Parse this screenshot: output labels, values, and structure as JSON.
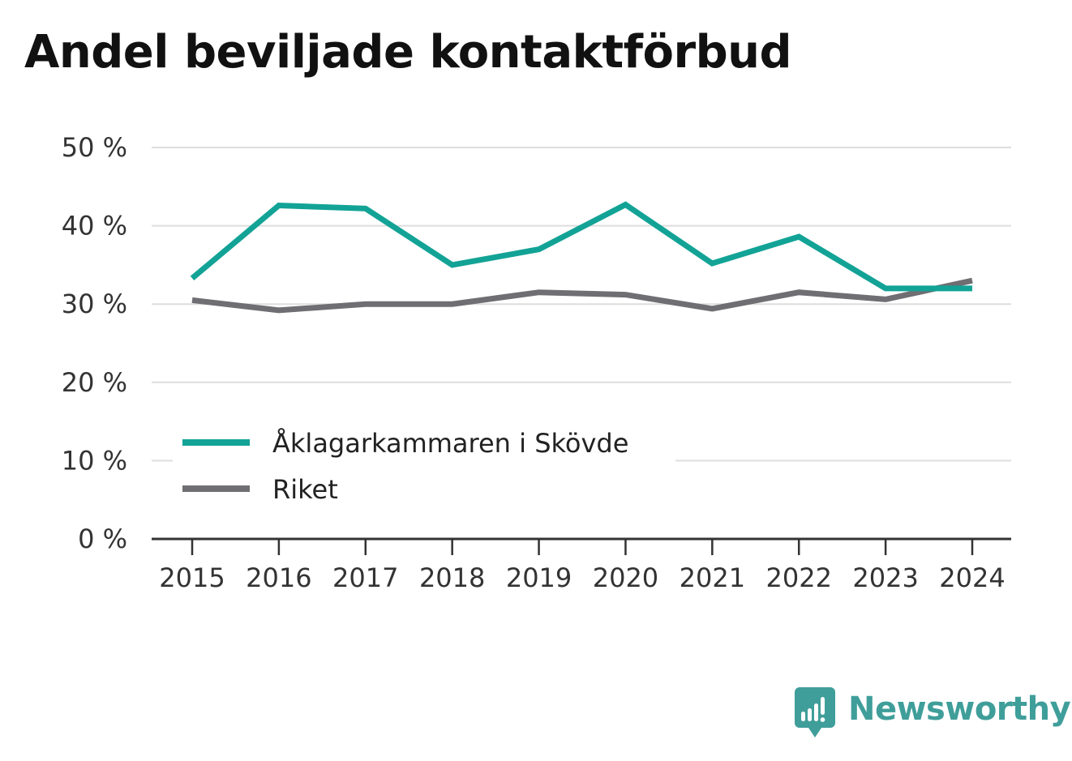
{
  "title": "Andel beviljade kontaktförbud",
  "brand": {
    "name": "Newsworthy",
    "icon": "newsworthy-logo-icon",
    "color": "#3f9e9a"
  },
  "chart_data": {
    "type": "line",
    "title": "Andel beviljade kontaktförbud",
    "xlabel": "",
    "ylabel": "",
    "x": [
      "2015",
      "2016",
      "2017",
      "2018",
      "2019",
      "2020",
      "2021",
      "2022",
      "2023",
      "2024"
    ],
    "y_ticks": [
      "0 %",
      "10 %",
      "20 %",
      "30 %",
      "40 %",
      "50 %"
    ],
    "ylim": [
      0,
      50
    ],
    "grid": true,
    "legend_placement": "lower-left",
    "series": [
      {
        "name": "Åklagarkammaren i Skövde",
        "color": "#12a396",
        "values": [
          33.3,
          42.6,
          42.2,
          35.0,
          37.0,
          42.7,
          35.2,
          38.6,
          32.0,
          32.0
        ]
      },
      {
        "name": "Riket",
        "color": "#6f6e73",
        "values": [
          30.5,
          29.2,
          30.0,
          30.0,
          31.5,
          31.2,
          29.4,
          31.5,
          30.6,
          33.0
        ]
      }
    ]
  }
}
